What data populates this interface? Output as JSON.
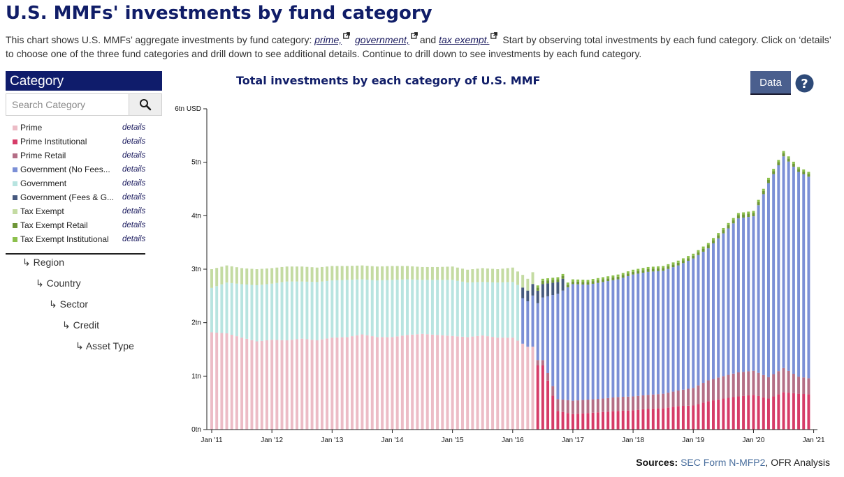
{
  "page": {
    "title": "U.S. MMFs' investments by fund category",
    "intro_pre": "This chart shows U.S. MMFs’ aggregate investments by fund category: ",
    "links": [
      "prime,",
      "government,",
      "tax exempt."
    ],
    "intro_and": "and ",
    "intro_post": " Start by observing total investments by each fund category. Click on ‘details’ to choose one of the three fund categories and drill down to see additional details. Continue to drill down to see investments by each fund category."
  },
  "sidebar": {
    "header": "Category",
    "search_placeholder": "Search Category",
    "details_label": "details",
    "categories": [
      {
        "label": "Prime",
        "color": "#ecbcc6"
      },
      {
        "label": "Prime Institutional",
        "color": "#d63c68"
      },
      {
        "label": "Prime Retail",
        "color": "#b46e86"
      },
      {
        "label": "Government (No Fees...",
        "color": "#7b8fd6"
      },
      {
        "label": "Government",
        "color": "#b8e4e0"
      },
      {
        "label": "Government (Fees & G...",
        "color": "#46597e"
      },
      {
        "label": "Tax Exempt",
        "color": "#c4dba2"
      },
      {
        "label": "Tax Exempt Retail",
        "color": "#6e9638"
      },
      {
        "label": "Tax Exempt Institutional",
        "color": "#8cc04c"
      }
    ],
    "drill_levels": [
      "↳ Region",
      "↳ Country",
      "↳ Sector",
      "↳ Credit",
      "↳ Asset Type"
    ]
  },
  "controls": {
    "data_button": "Data"
  },
  "sources": {
    "label": "Sources:",
    "form": "SEC Form N-MFP2",
    "sep": ", ",
    "analysis": "OFR Analysis"
  },
  "chart_data": {
    "type": "bar",
    "stacked": true,
    "title": "Total investments by each category of U.S. MMF",
    "xlabel": "",
    "ylabel": "",
    "y_unit": "USD",
    "y_ticks": [
      "0tn",
      "1tn",
      "2tn",
      "3tn",
      "4tn",
      "5tn",
      "6tn USD"
    ],
    "ylim": [
      0,
      6
    ],
    "x_ticks": [
      "Jan '11",
      "Jan '12",
      "Jan '13",
      "Jan '14",
      "Jan '15",
      "Jan '16",
      "Jan '17",
      "Jan '18",
      "Jan '19",
      "Jan '20",
      "Jan '21"
    ],
    "x_start": "2011-01",
    "x_end": "2020-12",
    "grid": false,
    "legend": "left sidebar",
    "series": [
      {
        "name": "Prime",
        "color": "#ecbcc6"
      },
      {
        "name": "Prime Institutional",
        "color": "#d63c68"
      },
      {
        "name": "Prime Retail",
        "color": "#b46e86"
      },
      {
        "name": "Government (No Fees...",
        "color": "#7b8fd6"
      },
      {
        "name": "Government",
        "color": "#b8e4e0"
      },
      {
        "name": "Government (Fees & G...",
        "color": "#46597e"
      },
      {
        "name": "Tax Exempt",
        "color": "#c4dba2"
      },
      {
        "name": "Tax Exempt Retail",
        "color": "#6e9638"
      },
      {
        "name": "Tax Exempt Institutional",
        "color": "#8cc04c"
      }
    ],
    "values_tn": {
      "dates": [
        "2011-01",
        "2011-04",
        "2011-07",
        "2011-10",
        "2012-01",
        "2012-04",
        "2012-07",
        "2012-10",
        "2013-01",
        "2013-04",
        "2013-07",
        "2013-10",
        "2014-01",
        "2014-04",
        "2014-07",
        "2014-10",
        "2015-01",
        "2015-04",
        "2015-07",
        "2015-10",
        "2016-01",
        "2016-04",
        "2016-07",
        "2016-10",
        "2017-01",
        "2017-04",
        "2017-07",
        "2017-10",
        "2018-01",
        "2018-04",
        "2018-07",
        "2018-10",
        "2019-01",
        "2019-04",
        "2019-07",
        "2019-10",
        "2020-01",
        "2020-04",
        "2020-07",
        "2020-10",
        "2020-12"
      ],
      "Prime": [
        1.82,
        1.8,
        1.72,
        1.65,
        1.68,
        1.67,
        1.7,
        1.67,
        1.72,
        1.73,
        1.78,
        1.73,
        1.73,
        1.77,
        1.79,
        1.77,
        1.75,
        1.73,
        1.76,
        1.72,
        1.72,
        1.55,
        0,
        0,
        0,
        0,
        0,
        0,
        0,
        0,
        0,
        0,
        0,
        0,
        0,
        0,
        0,
        0,
        0,
        0,
        0
      ],
      "Prime Institutional": [
        0,
        0,
        0,
        0,
        0,
        0,
        0,
        0,
        0,
        0,
        0,
        0,
        0,
        0,
        0,
        0,
        0,
        0,
        0,
        0,
        0,
        0,
        1.2,
        0.35,
        0.29,
        0.31,
        0.33,
        0.35,
        0.36,
        0.39,
        0.4,
        0.44,
        0.45,
        0.53,
        0.58,
        0.62,
        0.65,
        0.58,
        0.7,
        0.67,
        0.66
      ],
      "Prime Retail": [
        0,
        0,
        0,
        0,
        0,
        0,
        0,
        0,
        0,
        0,
        0,
        0,
        0,
        0,
        0,
        0,
        0,
        0,
        0,
        0,
        0,
        0,
        0.1,
        0.22,
        0.25,
        0.25,
        0.25,
        0.26,
        0.26,
        0.26,
        0.27,
        0.29,
        0.33,
        0.39,
        0.42,
        0.45,
        0.45,
        0.4,
        0.45,
        0.32,
        0.3
      ],
      "Government (No Fees...": [
        0,
        0,
        0,
        0,
        0,
        0,
        0,
        0,
        0,
        0,
        0,
        0,
        0,
        0,
        0,
        0,
        0,
        0,
        0,
        0,
        0,
        0.85,
        1.17,
        1.97,
        2.18,
        2.15,
        2.18,
        2.2,
        2.28,
        2.3,
        2.3,
        2.34,
        2.42,
        2.47,
        2.67,
        2.88,
        2.89,
        3.63,
        3.96,
        3.83,
        3.77
      ],
      "Government": [
        0.83,
        0.95,
        1.0,
        1.05,
        1.05,
        1.1,
        1.07,
        1.09,
        1.07,
        1.07,
        1.03,
        1.06,
        1.07,
        1.04,
        1.01,
        1.03,
        1.05,
        1.02,
        1.0,
        1.03,
        1.04,
        0,
        0,
        0,
        0,
        0,
        0,
        0,
        0,
        0,
        0,
        0,
        0,
        0,
        0,
        0,
        0,
        0,
        0,
        0,
        0
      ],
      "Government (Fees & G...": [
        0,
        0,
        0,
        0,
        0,
        0,
        0,
        0,
        0,
        0,
        0,
        0,
        0,
        0,
        0,
        0,
        0,
        0,
        0,
        0,
        0,
        0.2,
        0.25,
        0.22,
        0,
        0,
        0,
        0,
        0,
        0,
        0,
        0,
        0,
        0,
        0,
        0,
        0,
        0,
        0,
        0,
        0
      ],
      "Tax Exempt": [
        0.35,
        0.32,
        0.3,
        0.3,
        0.29,
        0.28,
        0.28,
        0.27,
        0.27,
        0.26,
        0.26,
        0.26,
        0.26,
        0.25,
        0.24,
        0.24,
        0.25,
        0.24,
        0.26,
        0.25,
        0.27,
        0.22,
        0,
        0,
        0,
        0,
        0,
        0,
        0,
        0,
        0,
        0,
        0,
        0,
        0,
        0,
        0,
        0,
        0,
        0,
        0
      ],
      "Tax Exempt Retail": [
        0,
        0,
        0,
        0,
        0,
        0,
        0,
        0,
        0,
        0,
        0,
        0,
        0,
        0,
        0,
        0,
        0,
        0,
        0,
        0,
        0,
        0,
        0.06,
        0.05,
        0.05,
        0.05,
        0.05,
        0.05,
        0.05,
        0.05,
        0.05,
        0.05,
        0.05,
        0.06,
        0.06,
        0.06,
        0.06,
        0.06,
        0.06,
        0.05,
        0.05
      ],
      "Tax Exempt Institutional": [
        0,
        0,
        0,
        0,
        0,
        0,
        0,
        0,
        0,
        0,
        0,
        0,
        0,
        0,
        0,
        0,
        0,
        0,
        0,
        0,
        0,
        0,
        0.04,
        0.04,
        0.04,
        0.04,
        0.04,
        0.04,
        0.04,
        0.04,
        0.04,
        0.04,
        0.04,
        0.04,
        0.04,
        0.04,
        0.04,
        0.04,
        0.04,
        0.04,
        0.04
      ]
    }
  }
}
